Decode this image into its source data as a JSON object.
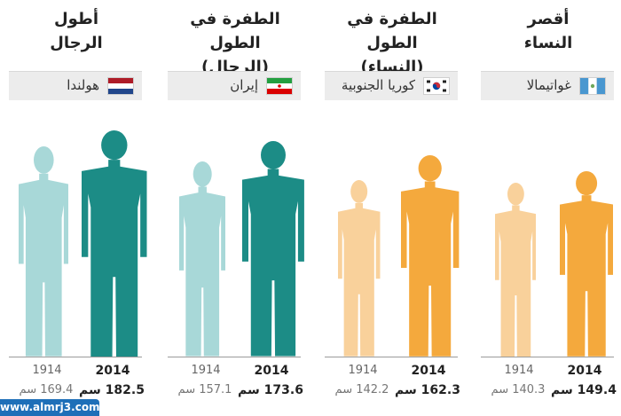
{
  "chart_data": {
    "type": "bar",
    "title": "",
    "categories": [
      "1914",
      "2014"
    ],
    "panels": [
      {
        "title_line1": "أقصر",
        "title_line2": "النساء",
        "country": "غواتيمالا",
        "flag": "guatemala-flag-icon",
        "values": [
          140.3,
          149.4
        ],
        "labels": [
          "140.3 سم",
          "149.4 سم"
        ],
        "colors": [
          "#f9d19b",
          "#f4a93d"
        ]
      },
      {
        "title_line1": "الطفرة في الطول",
        "title_line2": "(النساء)",
        "country": "كوريا الجنوبية",
        "flag": "south-korea-flag-icon",
        "values": [
          142.2,
          162.3
        ],
        "labels": [
          "142.2 سم",
          "162.3 سم"
        ],
        "colors": [
          "#f9d19b",
          "#f4a93d"
        ]
      },
      {
        "title_line1": "الطفرة في الطول",
        "title_line2": "(الرجال)",
        "country": "إيران",
        "flag": "iran-flag-icon",
        "values": [
          157.1,
          173.6
        ],
        "labels": [
          "157.1 سم",
          "173.6 سم"
        ],
        "colors": [
          "#a8d8d8",
          "#1c8c86"
        ]
      },
      {
        "title_line1": "أطول",
        "title_line2": "الرجال",
        "country": "هولندا",
        "flag": "netherlands-flag-icon",
        "values": [
          169.4,
          182.5
        ],
        "labels": [
          "169.4 سم",
          "182.5 سم"
        ],
        "colors": [
          "#a8d8d8",
          "#1c8c86"
        ]
      }
    ]
  },
  "watermark": "www.almrj3.com"
}
